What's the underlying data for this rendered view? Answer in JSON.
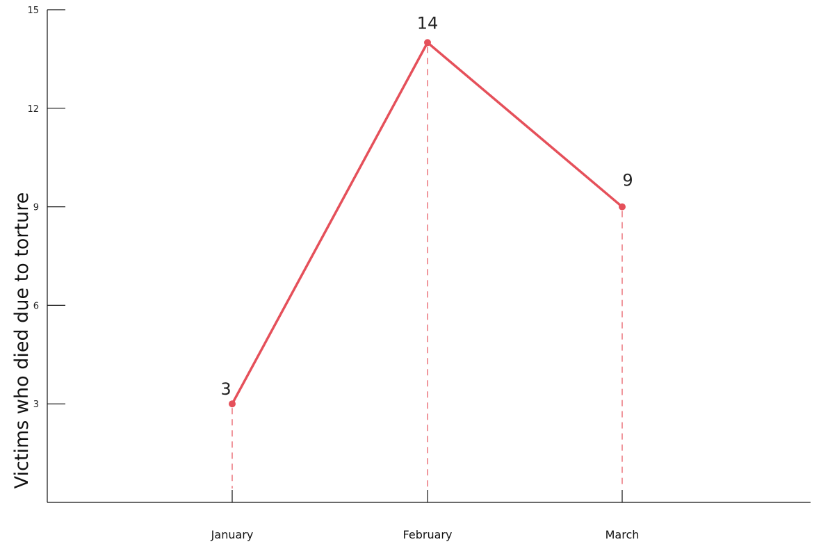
{
  "chart_data": {
    "type": "line",
    "ylabel": "Victims who died due to torture",
    "xlabel": "",
    "categories": [
      "January",
      "February",
      "March"
    ],
    "values": [
      3,
      14,
      9
    ],
    "data_labels": [
      "3",
      "14",
      "9"
    ],
    "ylim": [
      0,
      15
    ],
    "yticks": [
      3,
      6,
      9,
      12,
      15
    ],
    "ytick_labels": [
      "3",
      "6",
      "9",
      "12",
      "15"
    ],
    "grid": false,
    "drop_lines": true,
    "colors": {
      "series": "#e5505a",
      "axis": "#111111"
    }
  }
}
